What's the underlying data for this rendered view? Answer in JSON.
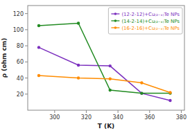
{
  "chart_data": {
    "type": "line",
    "x_label": "T (K)",
    "y_label": "ρ (ohm cm)",
    "x": [
      290,
      315,
      335,
      355,
      373
    ],
    "series": [
      {
        "name": "(12-2-12)+Cu₍₂₋ₓ₎Te NPs",
        "color": "#7B2FBE",
        "values": [
          78,
          56,
          55,
          21,
          12
        ]
      },
      {
        "name": "(14-2-14)+Cu₍₂₋ₓ₎Te NPs",
        "color": "#228B22",
        "values": [
          105,
          108,
          25,
          21,
          21
        ]
      },
      {
        "name": "(16-2-16)+Cu₍₂₋ₓ₎Te NPs",
        "color": "#FF8C00",
        "values": [
          43,
          40,
          39,
          34,
          22
        ]
      }
    ],
    "xlim": [
      283,
      382
    ],
    "ylim": [
      0,
      130
    ],
    "xticks": [
      300,
      320,
      340,
      360,
      380
    ],
    "yticks": [
      20,
      40,
      60,
      80,
      100,
      120
    ],
    "marker": "circle",
    "legend": "upper right",
    "grid": false
  }
}
